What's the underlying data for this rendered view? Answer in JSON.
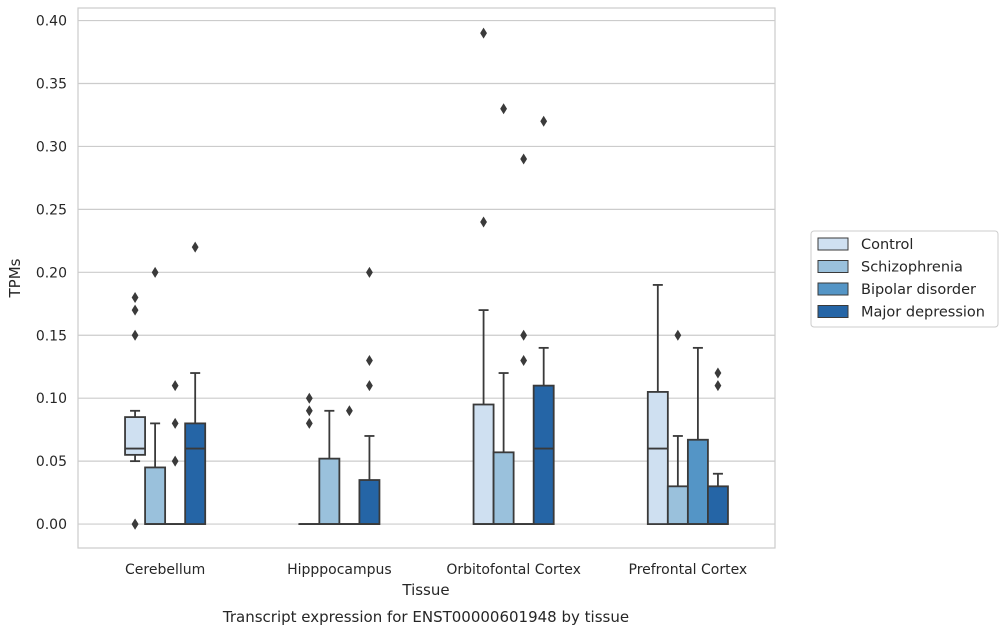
{
  "chart_data": {
    "type": "box",
    "caption": "Transcript expression for ENST00000601948 by tissue",
    "xlabel": "Tissue",
    "ylabel": "TPMs",
    "ylim": [
      -0.019,
      0.41
    ],
    "yticks": [
      0.0,
      0.05,
      0.1,
      0.15,
      0.2,
      0.25,
      0.3,
      0.35,
      0.4
    ],
    "ytick_labels": [
      "0.00",
      "0.05",
      "0.10",
      "0.15",
      "0.20",
      "0.25",
      "0.30",
      "0.35",
      "0.40"
    ],
    "grid": "horizontal",
    "legend_position": "right",
    "categories": [
      "Cerebellum",
      "Hipppocampus",
      "Orbitofontal Cortex",
      "Prefrontal Cortex"
    ],
    "series": [
      {
        "name": "Control",
        "color": "#cfe0f1",
        "boxes": [
          {
            "whisker_low": 0.05,
            "q1": 0.055,
            "median": 0.06,
            "q3": 0.085,
            "whisker_high": 0.09,
            "outliers": [
              0.0,
              0.0,
              0.15,
              0.17,
              0.18
            ]
          },
          {
            "whisker_low": 0.0,
            "q1": 0.0,
            "median": 0.0,
            "q3": 0.0,
            "whisker_high": 0.0,
            "outliers": [
              0.08,
              0.09,
              0.1
            ]
          },
          {
            "whisker_low": 0.0,
            "q1": 0.0,
            "median": 0.0,
            "q3": 0.095,
            "whisker_high": 0.17,
            "outliers": [
              0.24,
              0.39
            ]
          },
          {
            "whisker_low": 0.0,
            "q1": 0.0,
            "median": 0.06,
            "q3": 0.105,
            "whisker_high": 0.19,
            "outliers": []
          }
        ]
      },
      {
        "name": "Schizophrenia",
        "color": "#9ac1dc",
        "boxes": [
          {
            "whisker_low": 0.0,
            "q1": 0.0,
            "median": 0.0,
            "q3": 0.045,
            "whisker_high": 0.08,
            "outliers": [
              0.2
            ]
          },
          {
            "whisker_low": 0.0,
            "q1": 0.0,
            "median": 0.0,
            "q3": 0.052,
            "whisker_high": 0.09,
            "outliers": []
          },
          {
            "whisker_low": 0.0,
            "q1": 0.0,
            "median": 0.0,
            "q3": 0.057,
            "whisker_high": 0.12,
            "outliers": [
              0.33
            ]
          },
          {
            "whisker_low": 0.0,
            "q1": 0.0,
            "median": 0.0,
            "q3": 0.03,
            "whisker_high": 0.07,
            "outliers": [
              0.15
            ]
          }
        ]
      },
      {
        "name": "Bipolar disorder",
        "color": "#5495c6",
        "boxes": [
          {
            "whisker_low": 0.0,
            "q1": 0.0,
            "median": 0.0,
            "q3": 0.0,
            "whisker_high": 0.0,
            "outliers": [
              0.05,
              0.08,
              0.11
            ]
          },
          {
            "whisker_low": 0.0,
            "q1": 0.0,
            "median": 0.0,
            "q3": 0.0,
            "whisker_high": 0.0,
            "outliers": [
              0.09
            ]
          },
          {
            "whisker_low": 0.0,
            "q1": 0.0,
            "median": 0.0,
            "q3": 0.0,
            "whisker_high": 0.0,
            "outliers": [
              0.13,
              0.15,
              0.29
            ]
          },
          {
            "whisker_low": 0.0,
            "q1": 0.0,
            "median": 0.0,
            "q3": 0.067,
            "whisker_high": 0.14,
            "outliers": []
          }
        ]
      },
      {
        "name": "Major depression",
        "color": "#2565a6",
        "boxes": [
          {
            "whisker_low": 0.0,
            "q1": 0.0,
            "median": 0.06,
            "q3": 0.08,
            "whisker_high": 0.12,
            "outliers": [
              0.22
            ]
          },
          {
            "whisker_low": 0.0,
            "q1": 0.0,
            "median": 0.0,
            "q3": 0.035,
            "whisker_high": 0.07,
            "outliers": [
              0.11,
              0.13,
              0.2
            ]
          },
          {
            "whisker_low": 0.0,
            "q1": 0.0,
            "median": 0.06,
            "q3": 0.11,
            "whisker_high": 0.14,
            "outliers": [
              0.32
            ]
          },
          {
            "whisker_low": 0.0,
            "q1": 0.0,
            "median": 0.0,
            "q3": 0.03,
            "whisker_high": 0.04,
            "outliers": [
              0.11,
              0.12
            ]
          }
        ]
      }
    ]
  }
}
